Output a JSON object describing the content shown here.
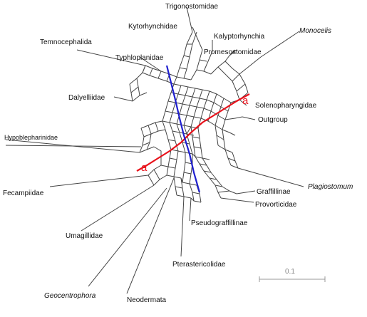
{
  "taxa": {
    "trigonostomidae": "Trigonostomidae",
    "kytorhynchidae": "Kytorhynchidae",
    "kalyptorhynchia": "Kalyptorhynchia",
    "monocelis": "Monocelis",
    "promesostomidae": "Promesostomidae",
    "temnocephalida": "Temnocephalida",
    "typhloplanidae": "Typhloplanidae",
    "dalyelliidae": "Dalyelliidae",
    "solenopharyngidae": "Solenopharyngidae",
    "outgroup": "Outgroup",
    "hypoblepharinidae": "Hypoblepharinidae",
    "fecampiidae": "Fecampiidae",
    "plagiostomum": "Plagiostomum",
    "graffillinae": "Graffillinae",
    "provorticidae": "Provorticidae",
    "pseudograffillinae": "Pseudograffillinae",
    "umagillidae": "Umagillidae",
    "pterastericolidae": "Pterastericolidae",
    "geocentrophora": "Geocentrophora",
    "neodermata": "Neodermata"
  },
  "splits": {
    "red_label_top": "a",
    "red_label_bottom": "a"
  },
  "scale_bar": {
    "label": "0.1"
  },
  "colors": {
    "split_red": "#e8121b",
    "split_blue": "#1f1fcf",
    "edge": "#444444"
  }
}
